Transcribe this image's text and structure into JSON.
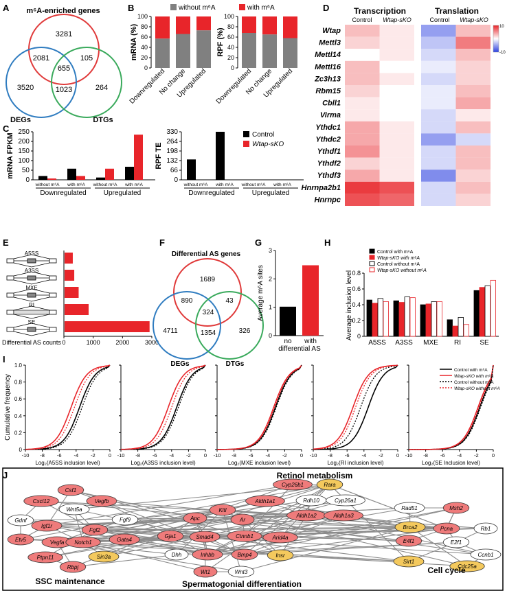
{
  "panels": {
    "A": {
      "letter": "A",
      "title": "m⁶A-enriched genes",
      "circles": [
        "DEGs",
        "DTGs"
      ],
      "regions": {
        "top_only": "3281",
        "left_top": "2081",
        "center": "655",
        "right_top": "105",
        "left_only": "3520",
        "left_right": "1023",
        "right_only": "264"
      }
    },
    "B": {
      "letter": "B",
      "legend": [
        "without m⁶A",
        "with m⁶A"
      ],
      "left": {
        "ylabel": "mRNA (%)",
        "categories": [
          "Downregulated",
          "No change",
          "Upregulated"
        ],
        "with_pct": [
          43,
          34,
          27
        ],
        "ticks": [
          "0",
          "20",
          "40",
          "60",
          "80",
          "100"
        ]
      },
      "right": {
        "ylabel": "RPF (%)",
        "categories": [
          "Downregulated",
          "No change",
          "Upregulated"
        ],
        "with_pct": [
          32,
          35,
          42
        ],
        "ticks": [
          "0",
          "20",
          "40",
          "60",
          "80",
          "100"
        ]
      }
    },
    "C": {
      "letter": "C",
      "left": {
        "ylabel": "mRNA  FPKM",
        "ticks": [
          "0",
          "50",
          "100",
          "150",
          "200",
          "250"
        ],
        "groups": [
          "Downregulated",
          "Upregulated"
        ],
        "sub": [
          "without m⁶A",
          "with m⁶A",
          "without m⁶A",
          "with m⁶A"
        ],
        "control": [
          20,
          58,
          12,
          68
        ],
        "wtap": [
          7,
          20,
          58,
          235
        ]
      },
      "right": {
        "ylabel": "RPF TE",
        "ticks": [
          "0",
          "66",
          "132",
          "198",
          "264",
          "330"
        ],
        "groups": [
          "Downregulated",
          "Upregulated"
        ],
        "sub": [
          "without m⁶A",
          "with m⁶A",
          "without m⁶A",
          "with m⁶A"
        ],
        "control": [
          140,
          330,
          0,
          0
        ],
        "wtap": [
          0,
          0,
          0,
          0
        ]
      },
      "legend": [
        "Control",
        "Wtap-sKO"
      ]
    },
    "D": {
      "letter": "D",
      "headers": [
        "Transcription",
        "Translation"
      ],
      "sub": [
        "Control",
        "Wtap-sKO",
        "Control",
        "Wtap-sKO"
      ],
      "genes": [
        "Wtap",
        "Mettl3",
        "Mettl14",
        "Mettl16",
        "Zc3h13",
        "Rbm15",
        "Cbll1",
        "Virma",
        "Ythdc1",
        "Ythdc2",
        "Ythdf1",
        "Ythdf2",
        "Ythdf3",
        "Hnrnpa2b1",
        "Hnrnpc"
      ],
      "values": [
        [
          3,
          1,
          -5,
          3
        ],
        [
          2,
          1,
          -3,
          6
        ],
        [
          0,
          1,
          -2,
          3
        ],
        [
          3,
          0,
          -1,
          2
        ],
        [
          3,
          1,
          -2,
          2
        ],
        [
          2,
          0,
          -1,
          3
        ],
        [
          1,
          0,
          -1,
          4
        ],
        [
          1,
          0,
          -2,
          1
        ],
        [
          4,
          1,
          -2,
          3
        ],
        [
          4,
          1,
          -5,
          -2
        ],
        [
          5,
          1,
          -2,
          3
        ],
        [
          2,
          1,
          -2,
          3
        ],
        [
          4,
          1,
          -6,
          2
        ],
        [
          9,
          8,
          -2,
          3
        ],
        [
          8,
          7,
          -2,
          2
        ]
      ],
      "scale": [
        "10",
        "-10"
      ]
    },
    "E": {
      "letter": "E",
      "types": [
        "A5SS",
        "A3SS",
        "MXE",
        "RI",
        "SE"
      ],
      "counts": [
        280,
        330,
        480,
        820,
        2900
      ],
      "xlabel": "Differential AS counts",
      "ticks": [
        "0",
        "1000",
        "2000",
        "3000"
      ]
    },
    "F": {
      "letter": "F",
      "title": "Differential AS genes",
      "circles": [
        "DEGs",
        "DTGs"
      ],
      "regions": {
        "top_only": "1689",
        "left_top": "890",
        "center": "324",
        "right_top": "43",
        "left_only": "4711",
        "left_right": "1354",
        "right_only": "326"
      }
    },
    "G": {
      "letter": "G",
      "ylabel": "Average m⁶A sites",
      "categories": [
        "no",
        "with"
      ],
      "sub": "differential AS",
      "values": [
        1.02,
        2.48
      ],
      "ticks": [
        "0",
        "1",
        "2",
        "3"
      ]
    },
    "H": {
      "letter": "H",
      "ylabel": "Average inclusion level",
      "categories": [
        "A5SS",
        "A3SS",
        "MXE",
        "RI",
        "SE"
      ],
      "series": [
        {
          "name": "Control with m⁶A",
          "values": [
            0.46,
            0.45,
            0.4,
            0.21,
            0.58
          ]
        },
        {
          "name": "Wtap-sKO with m⁶A",
          "values": [
            0.42,
            0.43,
            0.41,
            0.13,
            0.62
          ]
        },
        {
          "name": "Control without m⁶A",
          "values": [
            0.48,
            0.5,
            0.44,
            0.24,
            0.64
          ]
        },
        {
          "name": "Wtap-sKO without m⁶A",
          "values": [
            0.44,
            0.49,
            0.44,
            0.15,
            0.71
          ]
        }
      ],
      "ticks": [
        "0",
        "0.2",
        "0.4",
        "0.6",
        "0.8"
      ]
    },
    "I": {
      "letter": "I",
      "ylabel": "Cumulative frequency",
      "xlabels": [
        "Log₂(A5SS inclusion level)",
        "Log₂(A3SS inclusion level)",
        "Log₂(MXE inclusion level)",
        "Log₂(RI inclusion level)",
        "Log₂(SE Inclusion level)"
      ],
      "xticks": [
        "-10",
        "-8",
        "-6",
        "-4",
        "-2",
        "0"
      ],
      "yticks": [
        "0",
        "0.2",
        "0.4",
        "0.6",
        "0.8",
        "1.0"
      ],
      "legend": [
        "Control with m⁶A",
        "Wtap-sKO with m⁶A",
        "Control without m⁶A",
        "Wtap-sKO without m⁶A"
      ],
      "medians": [
        [
          -3.6,
          -4.6,
          -3.3,
          -4.2
        ],
        [
          -3.4,
          -4.4,
          -3.2,
          -4.0
        ],
        [
          -3.1,
          -3.3,
          -3.0,
          -3.2
        ],
        [
          -3.5,
          -5.3,
          -4.4,
          -5.0
        ],
        [
          -1.6,
          -1.8,
          -1.5,
          -1.7
        ]
      ]
    },
    "J": {
      "letter": "J",
      "titles": [
        "Retinol metabolism",
        "SSC maintenance",
        "Spermatogonial differentiation",
        "Cell cycle"
      ]
    }
  },
  "colors": {
    "red": "#e8252a",
    "gray": "#808080",
    "salmon": "#ef7b7b",
    "yellow": "#f4c95d",
    "venn_red": "#e03a3a",
    "venn_purple": "#7c3b91",
    "venn_olive": "#b0a630",
    "venn_blue": "#2f7cc0",
    "venn_green": "#3aaa5c"
  },
  "network": {
    "nodes": [
      {
        "id": "Csf1",
        "c": "salmon"
      },
      {
        "id": "Vegfb",
        "c": "salmon"
      },
      {
        "id": "Cxcl12",
        "c": "salmon"
      },
      {
        "id": "Wnt5a",
        "c": "white"
      },
      {
        "id": "Fgf9",
        "c": "white"
      },
      {
        "id": "Gdnf",
        "c": "white"
      },
      {
        "id": "Fgf2",
        "c": "salmon"
      },
      {
        "id": "Igf1r",
        "c": "salmon"
      },
      {
        "id": "Etv5",
        "c": "salmon"
      },
      {
        "id": "Vegfa",
        "c": "salmon"
      },
      {
        "id": "Notch1",
        "c": "salmon"
      },
      {
        "id": "Gata4",
        "c": "salmon"
      },
      {
        "id": "Ptpn11",
        "c": "salmon"
      },
      {
        "id": "Sin3a",
        "c": "yellow"
      },
      {
        "id": "Rbpj",
        "c": "salmon"
      },
      {
        "id": "Cyp26b1",
        "c": "salmon"
      },
      {
        "id": "Rara",
        "c": "yellow"
      },
      {
        "id": "Rdh10",
        "c": "white"
      },
      {
        "id": "Cyp26a1",
        "c": "white"
      },
      {
        "id": "Aldh1a1",
        "c": "salmon"
      },
      {
        "id": "Aldh1a2",
        "c": "salmon"
      },
      {
        "id": "Aldh1a3",
        "c": "salmon"
      },
      {
        "id": "Kitl",
        "c": "salmon"
      },
      {
        "id": "Apc",
        "c": "salmon"
      },
      {
        "id": "Ar",
        "c": "salmon"
      },
      {
        "id": "Gja1",
        "c": "salmon"
      },
      {
        "id": "Smad4",
        "c": "salmon"
      },
      {
        "id": "Ctnnb1",
        "c": "salmon"
      },
      {
        "id": "Arid4a",
        "c": "salmon"
      },
      {
        "id": "Dhh",
        "c": "white"
      },
      {
        "id": "Inhbb",
        "c": "salmon"
      },
      {
        "id": "Bmp4",
        "c": "salmon"
      },
      {
        "id": "Insr",
        "c": "yellow"
      },
      {
        "id": "Wt1",
        "c": "salmon"
      },
      {
        "id": "Wnt3",
        "c": "white"
      },
      {
        "id": "Rad51",
        "c": "white"
      },
      {
        "id": "Msh2",
        "c": "salmon"
      },
      {
        "id": "Brca2",
        "c": "yellow"
      },
      {
        "id": "Pcna",
        "c": "salmon"
      },
      {
        "id": "Rb1",
        "c": "white"
      },
      {
        "id": "E4f1",
        "c": "salmon"
      },
      {
        "id": "E2f1",
        "c": "white"
      },
      {
        "id": "Ccnb1",
        "c": "white"
      },
      {
        "id": "Sirt1",
        "c": "yellow"
      },
      {
        "id": "Cdc25a",
        "c": "yellow"
      }
    ]
  }
}
